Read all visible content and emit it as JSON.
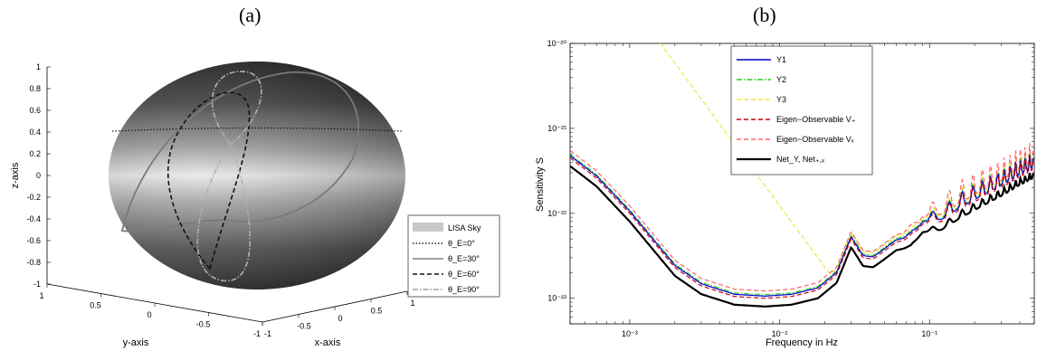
{
  "panels": {
    "a_title": "(a)",
    "b_title": "(b)"
  },
  "chart_data": [
    {
      "type": "other",
      "panel": "(a)",
      "xlabel": "x-axis",
      "ylabel": "y-axis",
      "zlabel": "z-axis",
      "z_ticks": [
        "1",
        "0.8",
        "0.6",
        "0.4",
        "0.2",
        "0",
        "-0.2",
        "-0.4",
        "-0.6",
        "-0.8",
        "-1"
      ],
      "y_ticks": [
        "1",
        "0.5",
        "0",
        "-0.5",
        "-1"
      ],
      "x_ticks": [
        "-1",
        "-0.5",
        "0",
        "0.5",
        "1"
      ],
      "zlim": [
        -1,
        1
      ],
      "legend": {
        "placement": "right",
        "entries": [
          {
            "label": "LISA Sky",
            "style": "patch",
            "color": "#c8c8c8"
          },
          {
            "label": "θ_E=0°",
            "style": "dotted",
            "color": "#222222"
          },
          {
            "label": "θ_E=30°",
            "style": "solid",
            "color": "#808080"
          },
          {
            "label": "θ_E=60°",
            "style": "dashed",
            "color": "#111111"
          },
          {
            "label": "θ_E=90°",
            "style": "dashdot",
            "color": "#a0a0a0"
          }
        ]
      }
    },
    {
      "type": "line",
      "panel": "(b)",
      "xlabel": "Frequency in Hz",
      "ylabel": "Sensitivity S",
      "xscale": "log",
      "yscale": "log",
      "xlim": [
        0.0004,
        0.5
      ],
      "ylim": [
        5e-24,
        1e-20
      ],
      "x_ticks": [
        "10⁻³",
        "10⁻²",
        "10⁻¹"
      ],
      "y_ticks": [
        "10⁻²⁰",
        "10⁻²¹",
        "10⁻²²",
        "10⁻²³"
      ],
      "legend_placement": "top-center",
      "series": [
        {
          "name": "Y1",
          "color": "#0000cc",
          "style": "solid",
          "scale": 1.06
        },
        {
          "name": "Y2",
          "color": "#22cc22",
          "style": "dashdot",
          "scale": 1.1
        },
        {
          "name": "Y3",
          "color": "#e8e840",
          "style": "dashed",
          "scale": 1.18,
          "lowfreq_rise": true
        },
        {
          "name": "Eigen−Observable V₊",
          "color": "#cc0000",
          "style": "dashed",
          "scale": 1.0
        },
        {
          "name": "Eigen−Observable Vₓ",
          "color": "#ff6060",
          "style": "dashed",
          "scale": 1.22
        },
        {
          "name": "Net_Y, Net₊,ₓ",
          "color": "#000000",
          "style": "solid",
          "scale": 0.8
        }
      ],
      "base_curve": {
        "x": [
          0.0004,
          0.0006,
          0.001,
          0.002,
          0.003,
          0.005,
          0.008,
          0.012,
          0.018,
          0.024,
          0.03,
          0.036,
          0.042,
          0.05,
          0.06,
          0.075,
          0.09,
          0.12,
          0.16,
          0.22,
          0.3,
          0.4,
          0.5
        ],
        "y": [
          4.5e-22,
          2.6e-22,
          1e-22,
          2.3e-23,
          1.4e-23,
          1.05e-23,
          1e-23,
          1.05e-23,
          1.25e-23,
          1.9e-23,
          5e-23,
          3e-23,
          2.9e-23,
          3.6e-23,
          4.6e-23,
          5e-23,
          7.5e-23,
          8e-23,
          1.1e-22,
          1.5e-22,
          2e-22,
          2.7e-22,
          3.3e-22
        ]
      }
    }
  ]
}
